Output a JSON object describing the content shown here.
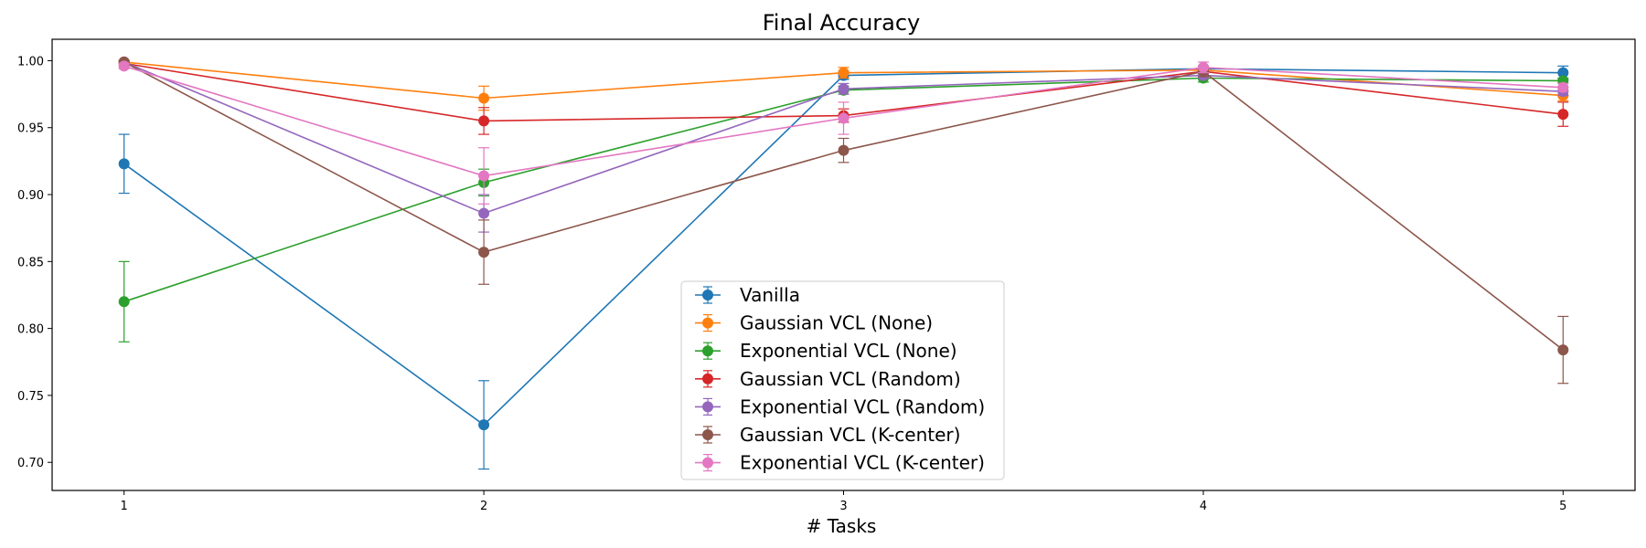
{
  "chart_data": {
    "type": "line",
    "title": "Final Accuracy",
    "xlabel": "# Tasks",
    "ylabel": "",
    "x": [
      1,
      2,
      3,
      4,
      5
    ],
    "xticks": [
      "1",
      "2",
      "3",
      "4",
      "5"
    ],
    "yticks": [
      "0.70",
      "0.75",
      "0.80",
      "0.85",
      "0.90",
      "0.95",
      "1.00"
    ],
    "ylim": [
      0.679,
      1.016
    ],
    "xlim": [
      0.8,
      5.2
    ],
    "grid": false,
    "legend_position": "lower-center",
    "series": [
      {
        "name": "Vanilla",
        "color": "#1f77b4",
        "values": [
          0.923,
          0.728,
          0.989,
          0.994,
          0.991
        ],
        "errors": [
          0.022,
          0.033,
          0.003,
          0.002,
          0.005
        ]
      },
      {
        "name": "Gaussian VCL (None)",
        "color": "#ff7f0e",
        "values": [
          0.999,
          0.972,
          0.991,
          0.993,
          0.974
        ],
        "errors": [
          0.001,
          0.009,
          0.004,
          0.002,
          0.004
        ]
      },
      {
        "name": "Exponential VCL (None)",
        "color": "#2ca02c",
        "values": [
          0.82,
          0.909,
          0.978,
          0.987,
          0.985
        ],
        "errors": [
          0.03,
          0.01,
          0.003,
          0.003,
          0.002
        ]
      },
      {
        "name": "Gaussian VCL (Random)",
        "color": "#d62728",
        "values": [
          0.998,
          0.955,
          0.959,
          0.992,
          0.96
        ],
        "errors": [
          0.002,
          0.01,
          0.005,
          0.002,
          0.009
        ]
      },
      {
        "name": "Exponential VCL (Random)",
        "color": "#9467bd",
        "values": [
          0.999,
          0.886,
          0.979,
          0.989,
          0.977
        ],
        "errors": [
          0.001,
          0.014,
          0.004,
          0.002,
          0.003
        ]
      },
      {
        "name": "Gaussian VCL (K-center)",
        "color": "#8c564b",
        "values": [
          0.999,
          0.857,
          0.933,
          0.992,
          0.784
        ],
        "errors": [
          0.001,
          0.024,
          0.009,
          0.004,
          0.025
        ]
      },
      {
        "name": "Exponential VCL (K-center)",
        "color": "#e377c2",
        "values": [
          0.996,
          0.914,
          0.957,
          0.995,
          0.98
        ],
        "errors": [
          0.002,
          0.021,
          0.012,
          0.004,
          0.003
        ]
      }
    ]
  }
}
